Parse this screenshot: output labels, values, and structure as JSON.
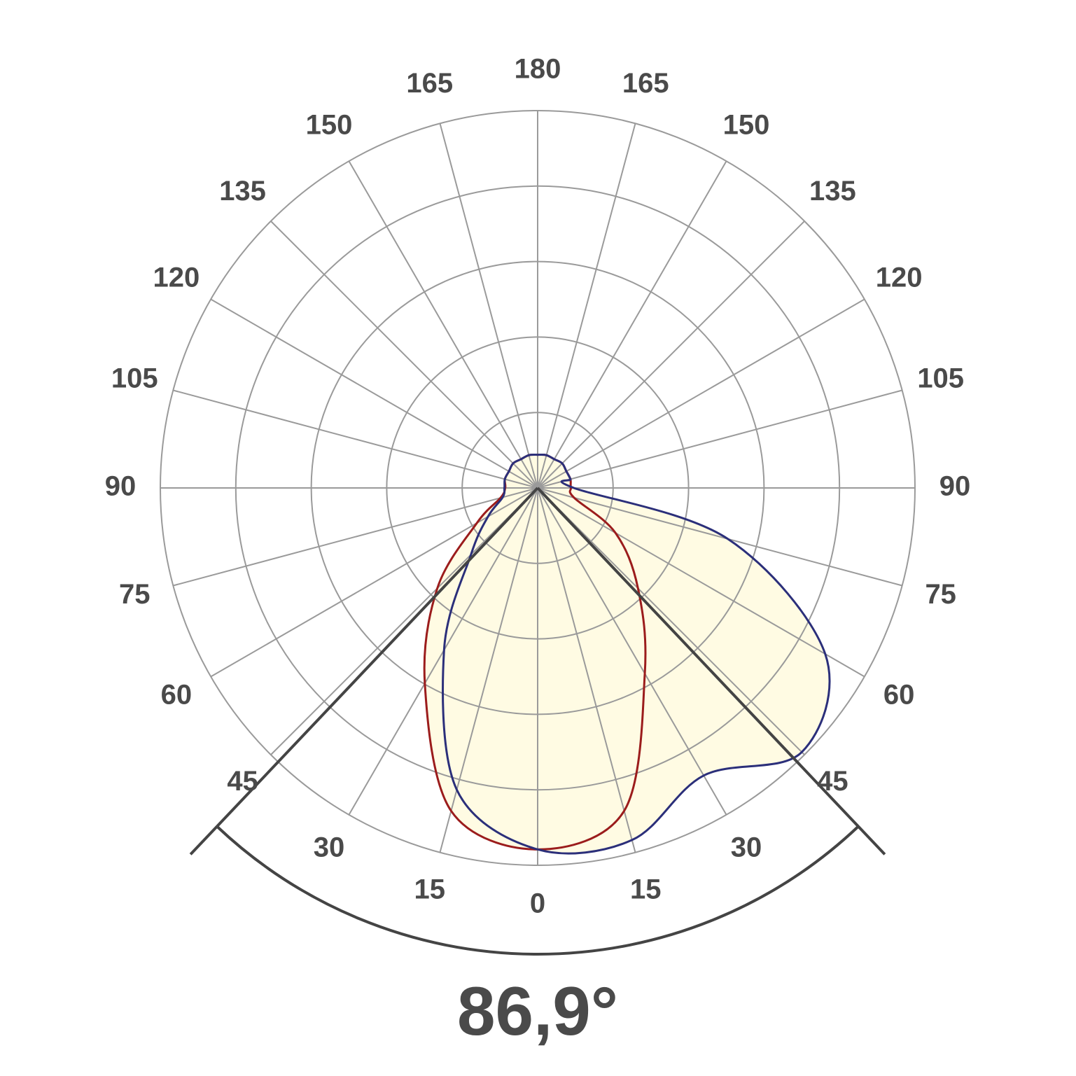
{
  "chart_data": {
    "type": "polar",
    "angles": [
      -180,
      -165,
      -150,
      -135,
      -120,
      -105,
      -90,
      -75,
      -60,
      -45,
      -30,
      -15,
      0,
      15,
      30,
      45,
      60,
      75,
      90,
      105,
      120,
      135,
      150,
      165,
      180
    ],
    "series": [
      {
        "color": "#9b1c1c",
        "values": [
          44,
          45,
          44,
          46,
          44,
          45,
          43,
          51,
          93,
          188,
          299,
          443,
          479,
          443,
          284,
          188,
          119,
          50,
          44,
          45,
          44,
          46,
          44,
          45,
          44
        ]
      },
      {
        "color": "#2b2f7a",
        "values": [
          44,
          45,
          44,
          46,
          44,
          45,
          44,
          48,
          76,
          125,
          248,
          414,
          479,
          483,
          440,
          495,
          440,
          261,
          48,
          45,
          44,
          46,
          44,
          45,
          44
        ]
      }
    ],
    "fill": "#fffbe3",
    "rlim": [
      0,
      500
    ],
    "rticks": [
      100,
      200,
      300,
      400,
      500
    ],
    "angle_ticks": [
      0,
      {
        "value": -15,
        "label": "15"
      },
      {
        "value": -30,
        "label": "30"
      },
      {
        "value": -45,
        "label": "45"
      },
      {
        "value": -60,
        "label": "60"
      },
      {
        "value": -75,
        "label": "75"
      },
      {
        "value": -90,
        "label": "90"
      },
      {
        "value": -105,
        "label": "105"
      },
      {
        "value": -120,
        "label": "120"
      },
      {
        "value": -135,
        "label": "135"
      },
      {
        "value": -150,
        "label": "150"
      },
      {
        "value": -165,
        "label": "165"
      },
      15,
      30,
      45,
      60,
      75,
      90,
      105,
      120,
      135,
      150,
      165,
      180
    ],
    "beam_angle": {
      "value": 86.9,
      "label": "86,9°"
    },
    "grid": true
  }
}
